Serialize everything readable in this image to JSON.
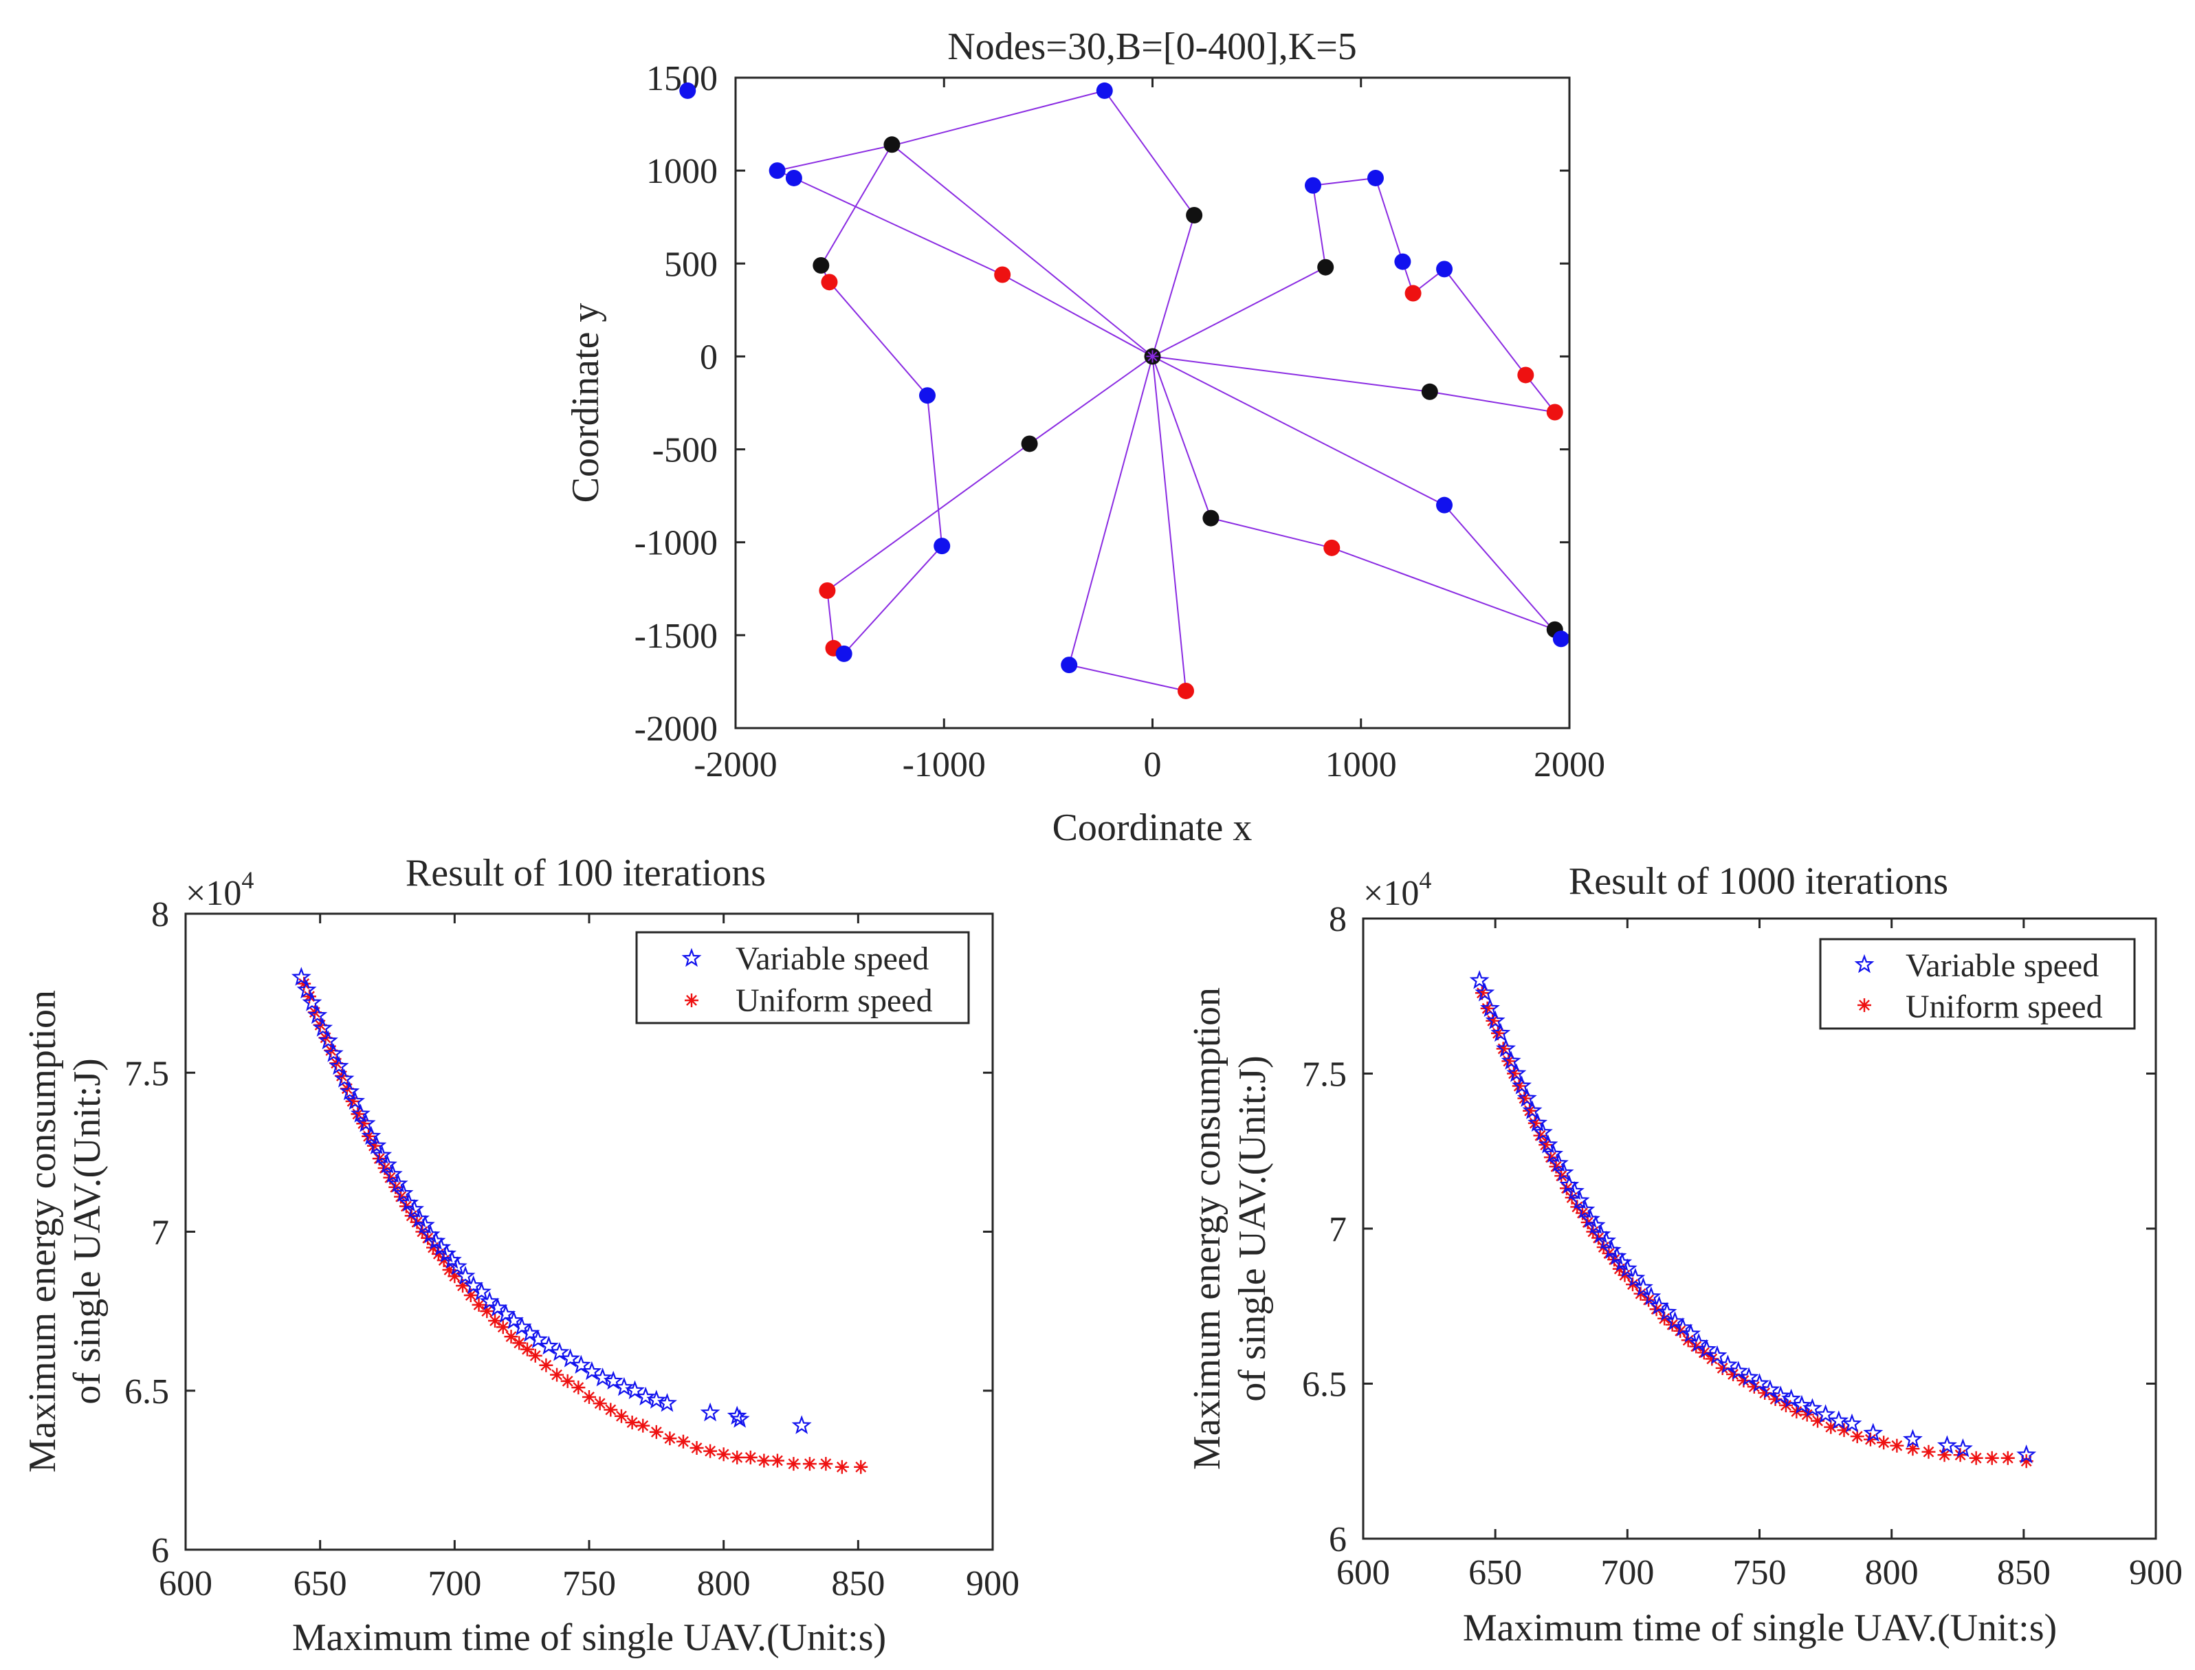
{
  "chart_data": [
    {
      "id": "top",
      "type": "scatter",
      "title": "Nodes=30,B=[0-400],K=5",
      "xlabel": "Coordinate x",
      "ylabel": "Coordinate y",
      "xlim": [
        -2000,
        2000
      ],
      "ylim": [
        -2000,
        1500
      ],
      "xticks": [
        -2000,
        -1000,
        0,
        1000,
        2000
      ],
      "yticks": [
        -2000,
        -1500,
        -1000,
        -500,
        0,
        500,
        1000,
        1500
      ],
      "xtick_labels": [
        "-2000",
        "-1000",
        "0",
        "1000",
        "2000"
      ],
      "ytick_labels": [
        "-2000",
        "-1500",
        "-1000",
        "-500",
        "0",
        "500",
        "1000",
        "1500"
      ],
      "colors": {
        "red": "#ee1111",
        "blue": "#1111ee",
        "black": "#111111",
        "path": "#8a2be2"
      },
      "depot": [
        0,
        0
      ],
      "routes": [
        [
          [
            0,
            0
          ],
          [
            -1250,
            1140
          ],
          [
            -1590,
            490
          ],
          [
            -1550,
            400
          ],
          [
            -1080,
            -210
          ],
          [
            -1010,
            -1020
          ],
          [
            -1480,
            -1600
          ],
          [
            -1530,
            -1570
          ],
          [
            -1560,
            -1260
          ],
          [
            -590,
            -470
          ],
          [
            0,
            0
          ]
        ],
        [
          [
            0,
            0
          ],
          [
            -720,
            440
          ],
          [
            -1720,
            960
          ],
          [
            -1800,
            1000
          ],
          [
            -1230,
            1140
          ],
          [
            -230,
            1430
          ],
          [
            200,
            760
          ],
          [
            0,
            0
          ]
        ],
        [
          [
            0,
            0
          ],
          [
            830,
            480
          ],
          [
            770,
            920
          ],
          [
            1070,
            960
          ],
          [
            1200,
            510
          ],
          [
            1250,
            340
          ],
          [
            1400,
            470
          ],
          [
            1790,
            -100
          ],
          [
            1930,
            -300
          ],
          [
            1330,
            -190
          ],
          [
            0,
            0
          ]
        ],
        [
          [
            0,
            0
          ],
          [
            1400,
            -800
          ],
          [
            1960,
            -1520
          ],
          [
            1930,
            -1470
          ],
          [
            860,
            -1030
          ],
          [
            280,
            -870
          ],
          [
            0,
            0
          ]
        ],
        [
          [
            0,
            0
          ],
          [
            160,
            -1800
          ],
          [
            -400,
            -1660
          ],
          [
            0,
            0
          ]
        ]
      ],
      "nodes": [
        {
          "x": -2230,
          "y": 1430,
          "c": "blue"
        },
        {
          "x": -1800,
          "y": 1000,
          "c": "blue"
        },
        {
          "x": -1720,
          "y": 960,
          "c": "blue"
        },
        {
          "x": -1250,
          "y": 1140,
          "c": "black"
        },
        {
          "x": -230,
          "y": 1430,
          "c": "blue"
        },
        {
          "x": 200,
          "y": 760,
          "c": "black"
        },
        {
          "x": -1590,
          "y": 490,
          "c": "black"
        },
        {
          "x": -1550,
          "y": 400,
          "c": "red"
        },
        {
          "x": -720,
          "y": 440,
          "c": "red"
        },
        {
          "x": -1080,
          "y": -210,
          "c": "blue"
        },
        {
          "x": -590,
          "y": -470,
          "c": "black"
        },
        {
          "x": -1010,
          "y": -1020,
          "c": "blue"
        },
        {
          "x": -1560,
          "y": -1260,
          "c": "red"
        },
        {
          "x": -1530,
          "y": -1570,
          "c": "red"
        },
        {
          "x": -1480,
          "y": -1600,
          "c": "blue"
        },
        {
          "x": -400,
          "y": -1660,
          "c": "blue"
        },
        {
          "x": 160,
          "y": -1800,
          "c": "red"
        },
        {
          "x": 280,
          "y": -870,
          "c": "black"
        },
        {
          "x": 860,
          "y": -1030,
          "c": "red"
        },
        {
          "x": 1400,
          "y": -800,
          "c": "blue"
        },
        {
          "x": 1930,
          "y": -1470,
          "c": "black"
        },
        {
          "x": 1960,
          "y": -1520,
          "c": "blue"
        },
        {
          "x": 1330,
          "y": -190,
          "c": "black"
        },
        {
          "x": 1790,
          "y": -100,
          "c": "red"
        },
        {
          "x": 1930,
          "y": -300,
          "c": "red"
        },
        {
          "x": 830,
          "y": 480,
          "c": "black"
        },
        {
          "x": 770,
          "y": 920,
          "c": "blue"
        },
        {
          "x": 1070,
          "y": 960,
          "c": "blue"
        },
        {
          "x": 1200,
          "y": 510,
          "c": "blue"
        },
        {
          "x": 1250,
          "y": 340,
          "c": "red"
        },
        {
          "x": 1400,
          "y": 470,
          "c": "blue"
        }
      ]
    },
    {
      "id": "left",
      "type": "scatter",
      "title": "Result of 100 iterations",
      "xlabel": "Maximum time of single UAV.(Unit:s)",
      "ylabel_line1": "Maximum energy consumption",
      "ylabel_line2": "of single UAV.(Unit:J)",
      "exponent_base": "×10",
      "exponent_power": "4",
      "xlim": [
        600,
        900
      ],
      "ylim": [
        6,
        8
      ],
      "xticks": [
        600,
        650,
        700,
        750,
        800,
        850,
        900
      ],
      "yticks": [
        6,
        6.5,
        7,
        7.5,
        8
      ],
      "xtick_labels": [
        "600",
        "650",
        "700",
        "750",
        "800",
        "850",
        "900"
      ],
      "ytick_labels": [
        "6",
        "6.5",
        "7",
        "7.5",
        "8"
      ],
      "legend": [
        "Variable speed",
        "Uniform speed"
      ],
      "series": [
        {
          "name": "Variable speed",
          "marker": "pentagram",
          "color": "#1111ee",
          "x": [
            643,
            645,
            647,
            649,
            651,
            653,
            655,
            657,
            659,
            661,
            663,
            665,
            667,
            669,
            671,
            673,
            675,
            677,
            679,
            681,
            683,
            685,
            687,
            689,
            691,
            693,
            695,
            697,
            699,
            701,
            704,
            707,
            710,
            713,
            716,
            719,
            722,
            725,
            728,
            731,
            735,
            739,
            743,
            747,
            751,
            755,
            759,
            763,
            767,
            771,
            775,
            779,
            795,
            805,
            806,
            829
          ],
          "y": [
            7.8,
            7.76,
            7.72,
            7.68,
            7.64,
            7.6,
            7.56,
            7.52,
            7.48,
            7.44,
            7.41,
            7.37,
            7.34,
            7.3,
            7.27,
            7.24,
            7.21,
            7.18,
            7.15,
            7.12,
            7.09,
            7.07,
            7.04,
            7.02,
            6.99,
            6.97,
            6.95,
            6.93,
            6.91,
            6.89,
            6.86,
            6.83,
            6.81,
            6.78,
            6.76,
            6.74,
            6.72,
            6.7,
            6.68,
            6.66,
            6.64,
            6.62,
            6.6,
            6.58,
            6.56,
            6.54,
            6.53,
            6.51,
            6.5,
            6.48,
            6.47,
            6.46,
            6.43,
            6.42,
            6.41,
            6.39
          ]
        },
        {
          "name": "Uniform speed",
          "marker": "asterisk",
          "color": "#ee1111",
          "x": [
            644,
            646,
            648,
            650,
            652,
            654,
            656,
            658,
            660,
            662,
            664,
            666,
            668,
            670,
            672,
            674,
            676,
            678,
            680,
            682,
            684,
            686,
            688,
            690,
            692,
            694,
            696,
            698,
            700,
            703,
            706,
            709,
            712,
            715,
            718,
            721,
            724,
            727,
            730,
            734,
            738,
            742,
            746,
            750,
            754,
            758,
            762,
            766,
            770,
            775,
            780,
            785,
            790,
            795,
            800,
            805,
            810,
            815,
            820,
            826,
            832,
            838,
            844,
            851
          ],
          "y": [
            7.78,
            7.74,
            7.69,
            7.65,
            7.61,
            7.57,
            7.53,
            7.49,
            7.45,
            7.41,
            7.37,
            7.34,
            7.3,
            7.27,
            7.23,
            7.2,
            7.17,
            7.14,
            7.11,
            7.08,
            7.05,
            7.03,
            7.0,
            6.98,
            6.95,
            6.93,
            6.91,
            6.88,
            6.86,
            6.83,
            6.8,
            6.77,
            6.75,
            6.72,
            6.7,
            6.67,
            6.65,
            6.63,
            6.61,
            6.58,
            6.55,
            6.53,
            6.51,
            6.48,
            6.46,
            6.44,
            6.42,
            6.4,
            6.39,
            6.37,
            6.35,
            6.34,
            6.32,
            6.31,
            6.3,
            6.29,
            6.29,
            6.28,
            6.28,
            6.27,
            6.27,
            6.27,
            6.26,
            6.26
          ]
        }
      ]
    },
    {
      "id": "right",
      "type": "scatter",
      "title": "Result of 1000 iterations",
      "xlabel": "Maximum time of single UAV.(Unit:s)",
      "ylabel_line1": "Maximum energy consumption",
      "ylabel_line2": "of single UAV.(Unit:J)",
      "exponent_base": "×10",
      "exponent_power": "4",
      "xlim": [
        600,
        900
      ],
      "ylim": [
        6,
        8
      ],
      "xticks": [
        600,
        650,
        700,
        750,
        800,
        850,
        900
      ],
      "yticks": [
        6,
        6.5,
        7,
        7.5,
        8
      ],
      "xtick_labels": [
        "600",
        "650",
        "700",
        "750",
        "800",
        "850",
        "900"
      ],
      "ytick_labels": [
        "6",
        "6.5",
        "7",
        "7.5",
        "8"
      ],
      "legend": [
        "Variable speed",
        "Uniform speed"
      ],
      "series": [
        {
          "name": "Variable speed",
          "marker": "pentagram",
          "color": "#1111ee",
          "x": [
            644,
            646,
            648,
            650,
            652,
            654,
            656,
            658,
            660,
            662,
            664,
            666,
            668,
            670,
            672,
            674,
            676,
            678,
            680,
            682,
            684,
            686,
            688,
            690,
            692,
            694,
            696,
            698,
            700,
            703,
            706,
            709,
            712,
            715,
            718,
            721,
            724,
            727,
            730,
            734,
            738,
            742,
            746,
            750,
            754,
            758,
            762,
            766,
            770,
            775,
            780,
            785,
            793,
            808,
            821,
            827,
            851
          ],
          "y": [
            7.8,
            7.76,
            7.71,
            7.67,
            7.63,
            7.58,
            7.54,
            7.5,
            7.46,
            7.42,
            7.38,
            7.34,
            7.31,
            7.27,
            7.24,
            7.21,
            7.18,
            7.14,
            7.12,
            7.09,
            7.06,
            7.03,
            7.01,
            6.98,
            6.96,
            6.93,
            6.91,
            6.89,
            6.87,
            6.84,
            6.81,
            6.78,
            6.75,
            6.73,
            6.7,
            6.68,
            6.66,
            6.63,
            6.61,
            6.59,
            6.56,
            6.54,
            6.52,
            6.5,
            6.48,
            6.46,
            6.45,
            6.43,
            6.42,
            6.4,
            6.38,
            6.37,
            6.34,
            6.32,
            6.3,
            6.29,
            6.27
          ]
        },
        {
          "name": "Uniform speed",
          "marker": "asterisk",
          "color": "#ee1111",
          "x": [
            645,
            647,
            649,
            651,
            653,
            655,
            657,
            659,
            661,
            663,
            665,
            667,
            669,
            671,
            673,
            675,
            677,
            679,
            681,
            683,
            685,
            687,
            689,
            691,
            693,
            695,
            697,
            699,
            702,
            705,
            708,
            711,
            714,
            717,
            720,
            723,
            726,
            729,
            732,
            736,
            740,
            744,
            748,
            752,
            756,
            760,
            764,
            768,
            772,
            777,
            782,
            787,
            792,
            797,
            802,
            808,
            814,
            820,
            826,
            832,
            838,
            844,
            851
          ],
          "y": [
            7.76,
            7.71,
            7.67,
            7.63,
            7.58,
            7.54,
            7.5,
            7.46,
            7.42,
            7.38,
            7.34,
            7.3,
            7.27,
            7.23,
            7.2,
            7.17,
            7.13,
            7.1,
            7.07,
            7.05,
            7.02,
            6.99,
            6.97,
            6.94,
            6.92,
            6.9,
            6.87,
            6.85,
            6.82,
            6.79,
            6.77,
            6.74,
            6.71,
            6.69,
            6.67,
            6.64,
            6.62,
            6.6,
            6.58,
            6.55,
            6.53,
            6.51,
            6.49,
            6.47,
            6.45,
            6.43,
            6.41,
            6.4,
            6.38,
            6.36,
            6.35,
            6.33,
            6.32,
            6.31,
            6.3,
            6.29,
            6.28,
            6.27,
            6.27,
            6.26,
            6.26,
            6.26,
            6.25
          ]
        }
      ]
    }
  ]
}
